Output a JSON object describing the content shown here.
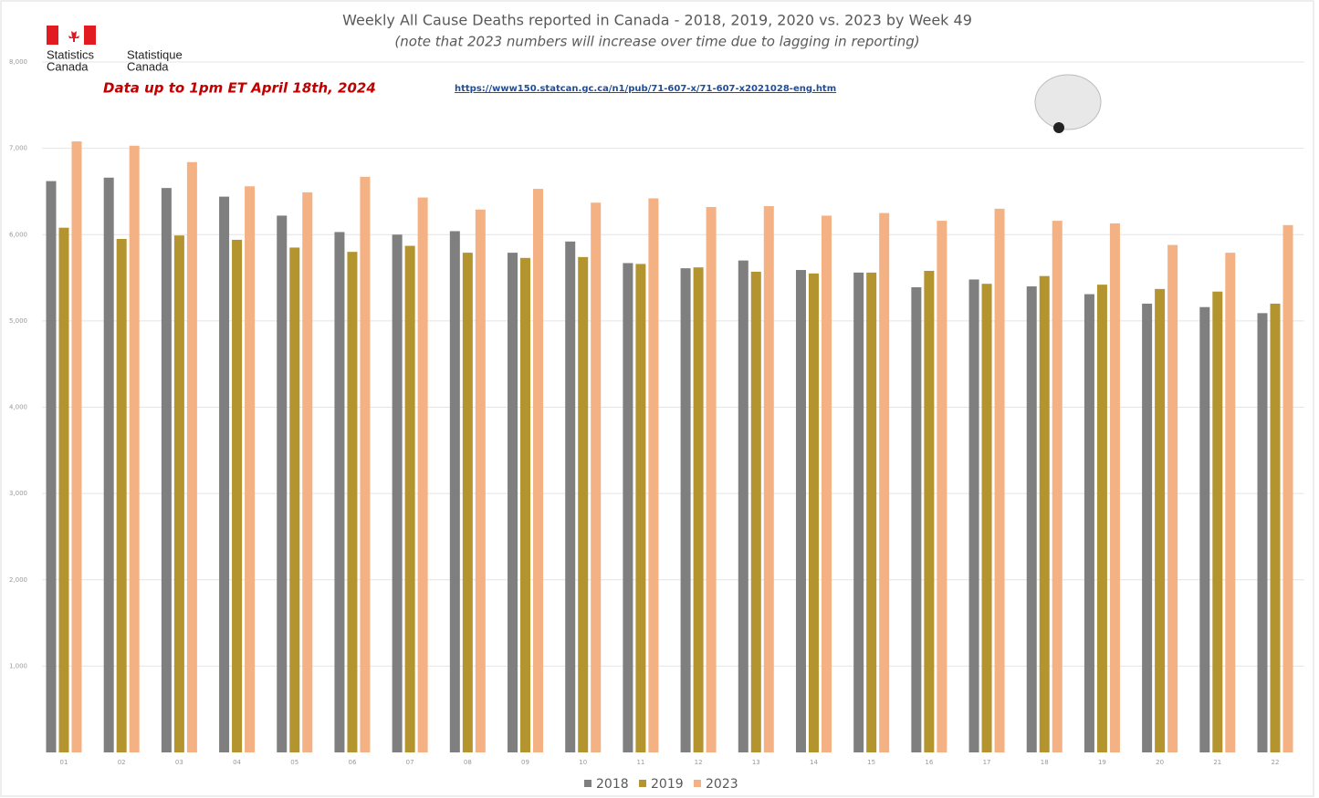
{
  "chart_data": {
    "type": "bar",
    "title": "Weekly All Cause Deaths reported in Canada - 2018, 2019, 2020 vs. 2023 by Week 49",
    "subtitle": "(note that 2023 numbers will increase over time due to lagging in reporting)",
    "note": "Data up to 1pm ET April 18th, 2024",
    "source_url": "https://www150.statcan.gc.ca/n1/pub/71-607-x/71-607-x2021028-eng.htm",
    "logo": {
      "en": [
        "Statistics",
        "Canada"
      ],
      "fr": [
        "Statistique",
        "Canada"
      ]
    },
    "categories": [
      "01",
      "02",
      "03",
      "04",
      "05",
      "06",
      "07",
      "08",
      "09",
      "10",
      "11",
      "12",
      "13",
      "14",
      "15",
      "16",
      "17",
      "18",
      "19",
      "20",
      "21",
      "22"
    ],
    "series": [
      {
        "name": "2018",
        "color": "#7f7f7f",
        "values": [
          6620,
          6660,
          6540,
          6440,
          6220,
          6030,
          6000,
          6040,
          5790,
          5920,
          5670,
          5610,
          5700,
          5590,
          5560,
          5390,
          5480,
          5400,
          5310,
          5200,
          5160,
          5090
        ]
      },
      {
        "name": "2019",
        "color": "#b3942f",
        "values": [
          6080,
          5950,
          5990,
          5940,
          5850,
          5800,
          5870,
          5790,
          5730,
          5740,
          5660,
          5620,
          5570,
          5550,
          5560,
          5580,
          5430,
          5520,
          5420,
          5370,
          5340,
          5200
        ]
      },
      {
        "name": "2023",
        "color": "#f4b183",
        "values": [
          7080,
          7030,
          6840,
          6560,
          6490,
          6670,
          6430,
          6290,
          6530,
          6370,
          6420,
          6320,
          6330,
          6220,
          6250,
          6160,
          6300,
          6160,
          6130,
          5880,
          5790,
          6110
        ]
      }
    ],
    "ylim": [
      0,
      8000
    ],
    "yticks": [
      {
        "value": 1000,
        "label": "1,000"
      },
      {
        "value": 2000,
        "label": "2,000"
      },
      {
        "value": 3000,
        "label": "3,000"
      },
      {
        "value": 4000,
        "label": "4,000"
      },
      {
        "value": 5000,
        "label": "5,000"
      },
      {
        "value": 6000,
        "label": "6,000"
      },
      {
        "value": 7000,
        "label": "7,000"
      },
      {
        "value": 8000,
        "label": "8,000"
      }
    ],
    "grid": true,
    "legend": "bottom"
  }
}
